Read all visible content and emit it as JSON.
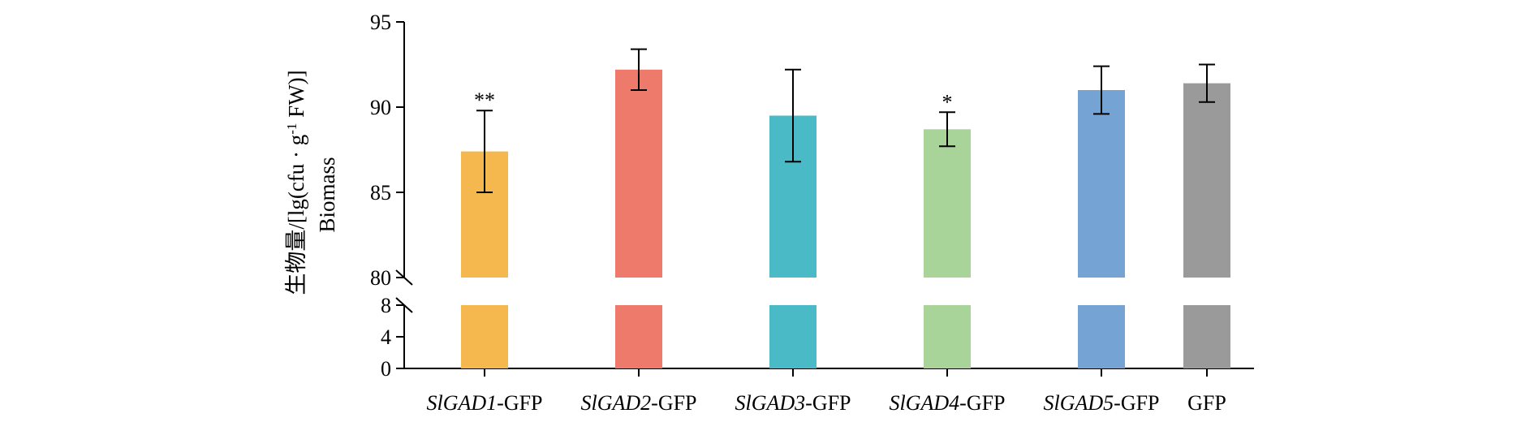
{
  "chart_data": {
    "type": "bar",
    "categories": [
      {
        "italic": "SlGAD1",
        "suffix": "-GFP"
      },
      {
        "italic": "SlGAD2",
        "suffix": "-GFP"
      },
      {
        "italic": "SlGAD3",
        "suffix": "-GFP"
      },
      {
        "italic": "SlGAD4",
        "suffix": "-GFP"
      },
      {
        "italic": "SlGAD5",
        "suffix": "-GFP"
      },
      {
        "italic": "",
        "suffix": "GFP"
      }
    ],
    "values": [
      87.4,
      92.2,
      89.5,
      88.7,
      91.0,
      91.4
    ],
    "errors": [
      2.4,
      1.2,
      2.7,
      1.0,
      1.4,
      1.1
    ],
    "significance": [
      "**",
      "",
      "",
      "*",
      "",
      ""
    ],
    "colors": [
      "#F5B84F",
      "#EE7A6C",
      "#4BBAC7",
      "#A8D499",
      "#74A3D4",
      "#9A9A9A"
    ],
    "ylabel_line1": "生物量/[lg(cfu · g",
    "ylabel_sup": "-1",
    "ylabel_line1_end": " FW)]",
    "ylabel_line2": "Biomass",
    "y_upper": {
      "range": [
        80,
        95
      ],
      "ticks": [
        80,
        85,
        90,
        95
      ]
    },
    "y_lower": {
      "range": [
        0,
        8
      ],
      "ticks": [
        0,
        4,
        8
      ]
    },
    "axis_break": true,
    "grid": false
  }
}
